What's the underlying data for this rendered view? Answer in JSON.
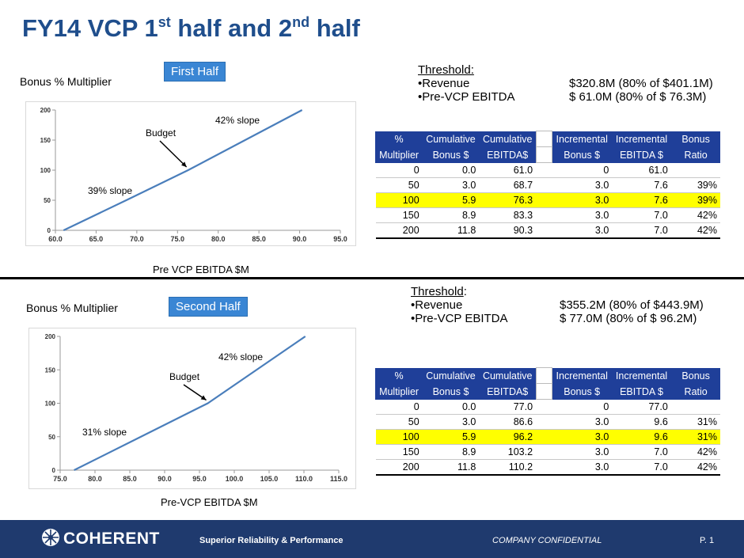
{
  "title": {
    "main": "FY14 VCP 1",
    "sup1": "st",
    "mid": " half and 2",
    "sup2": "nd",
    "end": " half"
  },
  "first": {
    "y_axis_label": "Bonus % Multiplier",
    "half_label": "First Half",
    "x_axis_label": "Pre VCP EBITDA $M",
    "threshold": {
      "heading": "Threshold:",
      "revenue_label": "•Revenue",
      "revenue_value": "$320.8M (80% of $401.1M)",
      "ebitda_label": "•Pre-VCP EBITDA",
      "ebitda_value": "$  61.0M (80% of $  76.3M)"
    },
    "table": {
      "headers_row1": [
        "%",
        "Cumulative",
        "Cumulative",
        "",
        "Incremental",
        "Incremental",
        "Bonus"
      ],
      "headers_row2": [
        "Multiplier",
        "Bonus $",
        "EBITDA$",
        "",
        "Bonus $",
        "EBITDA $",
        "Ratio"
      ],
      "rows": [
        [
          "0",
          "0.0",
          "61.0",
          "",
          "0",
          "61.0",
          ""
        ],
        [
          "50",
          "3.0",
          "68.7",
          "",
          "3.0",
          "7.6",
          "39%"
        ],
        [
          "100",
          "5.9",
          "76.3",
          "",
          "3.0",
          "7.6",
          "39%"
        ],
        [
          "150",
          "8.9",
          "83.3",
          "",
          "3.0",
          "7.0",
          "42%"
        ],
        [
          "200",
          "11.8",
          "90.3",
          "",
          "3.0",
          "7.0",
          "42%"
        ]
      ]
    }
  },
  "second": {
    "y_axis_label": "Bonus % Multiplier",
    "half_label": "Second Half",
    "x_axis_label": "Pre-VCP EBITDA $M",
    "threshold": {
      "heading": "Threshold",
      "heading_suffix": ":",
      "revenue_label": "•Revenue",
      "revenue_value": "$355.2M (80% of $443.9M)",
      "ebitda_label": "•Pre-VCP EBITDA",
      "ebitda_value": "$  77.0M (80% of $  96.2M)"
    },
    "table": {
      "headers_row1": [
        "%",
        "Cumulative",
        "Cumulative",
        "",
        "Incremental",
        "Incremental",
        "Bonus"
      ],
      "headers_row2": [
        "Multiplier",
        "Bonus $",
        "EBITDA$",
        "",
        "Bonus $",
        "EBITDA $",
        "Ratio"
      ],
      "rows": [
        [
          "0",
          "0.0",
          "77.0",
          "",
          "0",
          "77.0",
          ""
        ],
        [
          "50",
          "3.0",
          "86.6",
          "",
          "3.0",
          "9.6",
          "31%"
        ],
        [
          "100",
          "5.9",
          "96.2",
          "",
          "3.0",
          "9.6",
          "31%"
        ],
        [
          "150",
          "8.9",
          "103.2",
          "",
          "3.0",
          "7.0",
          "42%"
        ],
        [
          "200",
          "11.8",
          "110.2",
          "",
          "3.0",
          "7.0",
          "42%"
        ]
      ]
    }
  },
  "chart_data": [
    {
      "type": "line",
      "title": "First Half",
      "xlabel": "Pre VCP EBITDA $M",
      "ylabel": "Bonus % Multiplier",
      "x": [
        61.0,
        68.7,
        76.3,
        83.3,
        90.3
      ],
      "y": [
        0,
        50,
        100,
        150,
        200
      ],
      "xlim": [
        60,
        95
      ],
      "ylim": [
        0,
        200
      ],
      "xticks": [
        "60.0",
        "65.0",
        "70.0",
        "75.0",
        "80.0",
        "85.0",
        "90.0",
        "95.0"
      ],
      "yticks": [
        "0",
        "50",
        "100",
        "150",
        "200"
      ],
      "annotations": [
        "42% slope",
        "Budget",
        "39% slope"
      ],
      "line_color": "#4a7ebb"
    },
    {
      "type": "line",
      "title": "Second Half",
      "xlabel": "Pre-VCP EBITDA $M",
      "ylabel": "Bonus % Multiplier",
      "x": [
        77.0,
        86.6,
        96.2,
        103.2,
        110.2
      ],
      "y": [
        0,
        50,
        100,
        150,
        200
      ],
      "xlim": [
        75,
        115
      ],
      "ylim": [
        0,
        200
      ],
      "xticks": [
        "75.0",
        "80.0",
        "85.0",
        "90.0",
        "95.0",
        "100.0",
        "105.0",
        "110.0",
        "115.0"
      ],
      "yticks": [
        "0",
        "50",
        "100",
        "150",
        "200"
      ],
      "annotations": [
        "42% slope",
        "Budget",
        "31% slope"
      ],
      "line_color": "#4a7ebb"
    }
  ],
  "footer": {
    "logo": "COHERENT",
    "tagline": "Superior Reliability & Performance",
    "confidential": "COMPANY CONFIDENTIAL",
    "page": "P. 1"
  }
}
